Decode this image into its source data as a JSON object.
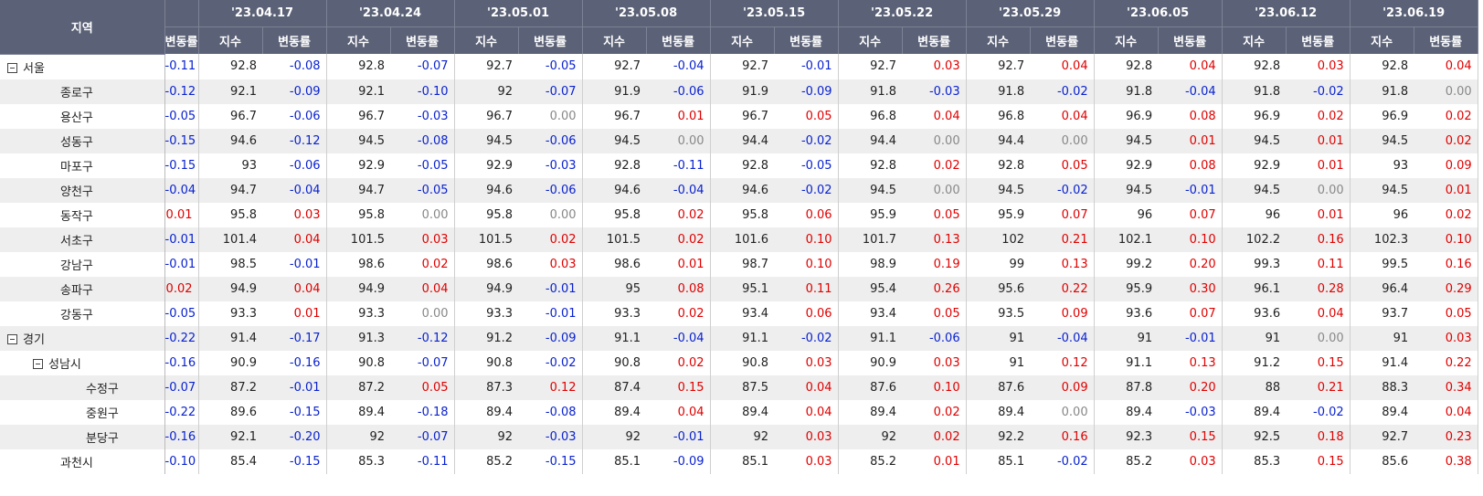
{
  "header": {
    "region_label": "지역",
    "cut_label": "변동률",
    "weeks": [
      "'23.04.17",
      "'23.04.24",
      "'23.05.01",
      "'23.05.08",
      "'23.05.15",
      "'23.05.22",
      "'23.05.29",
      "'23.06.05",
      "'23.06.12",
      "'23.06.19"
    ],
    "sub_labels": [
      "지수",
      "변동률"
    ]
  },
  "rows": [
    {
      "name": "서울",
      "prev_change": "-0.11",
      "weeks": [
        [
          "92.8",
          "-0.08"
        ],
        [
          "92.8",
          "-0.07"
        ],
        [
          "92.7",
          "-0.05"
        ],
        [
          "92.7",
          "-0.04"
        ],
        [
          "92.7",
          "-0.01"
        ],
        [
          "92.7",
          "0.03"
        ],
        [
          "92.7",
          "0.04"
        ],
        [
          "92.8",
          "0.04"
        ],
        [
          "92.8",
          "0.03"
        ],
        [
          "92.8",
          "0.04"
        ]
      ],
      "children": [
        {
          "name": "종로구",
          "prev_change": "-0.12",
          "weeks": [
            [
              "92.1",
              "-0.09"
            ],
            [
              "92.1",
              "-0.10"
            ],
            [
              "92",
              "-0.07"
            ],
            [
              "91.9",
              "-0.06"
            ],
            [
              "91.9",
              "-0.09"
            ],
            [
              "91.8",
              "-0.03"
            ],
            [
              "91.8",
              "-0.02"
            ],
            [
              "91.8",
              "-0.04"
            ],
            [
              "91.8",
              "-0.02"
            ],
            [
              "91.8",
              "0.00"
            ]
          ]
        },
        {
          "name": "용산구",
          "prev_change": "-0.05",
          "weeks": [
            [
              "96.7",
              "-0.06"
            ],
            [
              "96.7",
              "-0.03"
            ],
            [
              "96.7",
              "0.00"
            ],
            [
              "96.7",
              "0.01"
            ],
            [
              "96.7",
              "0.05"
            ],
            [
              "96.8",
              "0.04"
            ],
            [
              "96.8",
              "0.04"
            ],
            [
              "96.9",
              "0.08"
            ],
            [
              "96.9",
              "0.02"
            ],
            [
              "96.9",
              "0.02"
            ]
          ]
        },
        {
          "name": "성동구",
          "prev_change": "-0.15",
          "weeks": [
            [
              "94.6",
              "-0.12"
            ],
            [
              "94.5",
              "-0.08"
            ],
            [
              "94.5",
              "-0.06"
            ],
            [
              "94.5",
              "0.00"
            ],
            [
              "94.4",
              "-0.02"
            ],
            [
              "94.4",
              "0.00"
            ],
            [
              "94.4",
              "0.00"
            ],
            [
              "94.5",
              "0.01"
            ],
            [
              "94.5",
              "0.01"
            ],
            [
              "94.5",
              "0.02"
            ]
          ]
        },
        {
          "name": "마포구",
          "prev_change": "-0.15",
          "weeks": [
            [
              "93",
              "-0.06"
            ],
            [
              "92.9",
              "-0.05"
            ],
            [
              "92.9",
              "-0.03"
            ],
            [
              "92.8",
              "-0.11"
            ],
            [
              "92.8",
              "-0.05"
            ],
            [
              "92.8",
              "0.02"
            ],
            [
              "92.8",
              "0.05"
            ],
            [
              "92.9",
              "0.08"
            ],
            [
              "92.9",
              "0.01"
            ],
            [
              "93",
              "0.09"
            ]
          ]
        },
        {
          "name": "양천구",
          "prev_change": "-0.04",
          "weeks": [
            [
              "94.7",
              "-0.04"
            ],
            [
              "94.7",
              "-0.05"
            ],
            [
              "94.6",
              "-0.06"
            ],
            [
              "94.6",
              "-0.04"
            ],
            [
              "94.6",
              "-0.02"
            ],
            [
              "94.5",
              "0.00"
            ],
            [
              "94.5",
              "-0.02"
            ],
            [
              "94.5",
              "-0.01"
            ],
            [
              "94.5",
              "0.00"
            ],
            [
              "94.5",
              "0.01"
            ]
          ]
        },
        {
          "name": "동작구",
          "prev_change": "0.01",
          "weeks": [
            [
              "95.8",
              "0.03"
            ],
            [
              "95.8",
              "0.00"
            ],
            [
              "95.8",
              "0.00"
            ],
            [
              "95.8",
              "0.02"
            ],
            [
              "95.8",
              "0.06"
            ],
            [
              "95.9",
              "0.05"
            ],
            [
              "95.9",
              "0.07"
            ],
            [
              "96",
              "0.07"
            ],
            [
              "96",
              "0.01"
            ],
            [
              "96",
              "0.02"
            ]
          ]
        },
        {
          "name": "서초구",
          "prev_change": "-0.01",
          "weeks": [
            [
              "101.4",
              "0.04"
            ],
            [
              "101.5",
              "0.03"
            ],
            [
              "101.5",
              "0.02"
            ],
            [
              "101.5",
              "0.02"
            ],
            [
              "101.6",
              "0.10"
            ],
            [
              "101.7",
              "0.13"
            ],
            [
              "102",
              "0.21"
            ],
            [
              "102.1",
              "0.10"
            ],
            [
              "102.2",
              "0.16"
            ],
            [
              "102.3",
              "0.10"
            ]
          ]
        },
        {
          "name": "강남구",
          "prev_change": "-0.01",
          "weeks": [
            [
              "98.5",
              "-0.01"
            ],
            [
              "98.6",
              "0.02"
            ],
            [
              "98.6",
              "0.03"
            ],
            [
              "98.6",
              "0.01"
            ],
            [
              "98.7",
              "0.10"
            ],
            [
              "98.9",
              "0.19"
            ],
            [
              "99",
              "0.13"
            ],
            [
              "99.2",
              "0.20"
            ],
            [
              "99.3",
              "0.11"
            ],
            [
              "99.5",
              "0.16"
            ]
          ]
        },
        {
          "name": "송파구",
          "prev_change": "0.02",
          "weeks": [
            [
              "94.9",
              "0.04"
            ],
            [
              "94.9",
              "0.04"
            ],
            [
              "94.9",
              "-0.01"
            ],
            [
              "95",
              "0.08"
            ],
            [
              "95.1",
              "0.11"
            ],
            [
              "95.4",
              "0.26"
            ],
            [
              "95.6",
              "0.22"
            ],
            [
              "95.9",
              "0.30"
            ],
            [
              "96.1",
              "0.28"
            ],
            [
              "96.4",
              "0.29"
            ]
          ]
        },
        {
          "name": "강동구",
          "prev_change": "-0.05",
          "weeks": [
            [
              "93.3",
              "0.01"
            ],
            [
              "93.3",
              "0.00"
            ],
            [
              "93.3",
              "-0.01"
            ],
            [
              "93.3",
              "0.02"
            ],
            [
              "93.4",
              "0.06"
            ],
            [
              "93.4",
              "0.05"
            ],
            [
              "93.5",
              "0.09"
            ],
            [
              "93.6",
              "0.07"
            ],
            [
              "93.6",
              "0.04"
            ],
            [
              "93.7",
              "0.05"
            ]
          ]
        }
      ]
    },
    {
      "name": "경기",
      "prev_change": "-0.22",
      "weeks": [
        [
          "91.4",
          "-0.17"
        ],
        [
          "91.3",
          "-0.12"
        ],
        [
          "91.2",
          "-0.09"
        ],
        [
          "91.1",
          "-0.04"
        ],
        [
          "91.1",
          "-0.02"
        ],
        [
          "91.1",
          "-0.06"
        ],
        [
          "91",
          "-0.04"
        ],
        [
          "91",
          "-0.01"
        ],
        [
          "91",
          "0.00"
        ],
        [
          "91",
          "0.03"
        ]
      ],
      "children": [
        {
          "name": "성남시",
          "prev_change": "-0.16",
          "weeks": [
            [
              "90.9",
              "-0.16"
            ],
            [
              "90.8",
              "-0.07"
            ],
            [
              "90.8",
              "-0.02"
            ],
            [
              "90.8",
              "0.02"
            ],
            [
              "90.8",
              "0.03"
            ],
            [
              "90.9",
              "0.03"
            ],
            [
              "91",
              "0.12"
            ],
            [
              "91.1",
              "0.13"
            ],
            [
              "91.2",
              "0.15"
            ],
            [
              "91.4",
              "0.22"
            ]
          ],
          "children": [
            {
              "name": "수정구",
              "prev_change": "-0.07",
              "weeks": [
                [
                  "87.2",
                  "-0.01"
                ],
                [
                  "87.2",
                  "0.05"
                ],
                [
                  "87.3",
                  "0.12"
                ],
                [
                  "87.4",
                  "0.15"
                ],
                [
                  "87.5",
                  "0.04"
                ],
                [
                  "87.6",
                  "0.10"
                ],
                [
                  "87.6",
                  "0.09"
                ],
                [
                  "87.8",
                  "0.20"
                ],
                [
                  "88",
                  "0.21"
                ],
                [
                  "88.3",
                  "0.34"
                ]
              ]
            },
            {
              "name": "중원구",
              "prev_change": "-0.22",
              "weeks": [
                [
                  "89.6",
                  "-0.15"
                ],
                [
                  "89.4",
                  "-0.18"
                ],
                [
                  "89.4",
                  "-0.08"
                ],
                [
                  "89.4",
                  "0.04"
                ],
                [
                  "89.4",
                  "0.04"
                ],
                [
                  "89.4",
                  "0.02"
                ],
                [
                  "89.4",
                  "0.00"
                ],
                [
                  "89.4",
                  "-0.03"
                ],
                [
                  "89.4",
                  "-0.02"
                ],
                [
                  "89.4",
                  "0.04"
                ]
              ]
            },
            {
              "name": "분당구",
              "prev_change": "-0.16",
              "weeks": [
                [
                  "92.1",
                  "-0.20"
                ],
                [
                  "92",
                  "-0.07"
                ],
                [
                  "92",
                  "-0.03"
                ],
                [
                  "92",
                  "-0.01"
                ],
                [
                  "92",
                  "0.03"
                ],
                [
                  "92",
                  "0.02"
                ],
                [
                  "92.2",
                  "0.16"
                ],
                [
                  "92.3",
                  "0.15"
                ],
                [
                  "92.5",
                  "0.18"
                ],
                [
                  "92.7",
                  "0.23"
                ]
              ]
            }
          ]
        },
        {
          "name": "과천시",
          "prev_change": "-0.10",
          "weeks": [
            [
              "85.4",
              "-0.15"
            ],
            [
              "85.3",
              "-0.11"
            ],
            [
              "85.2",
              "-0.15"
            ],
            [
              "85.1",
              "-0.09"
            ],
            [
              "85.1",
              "0.03"
            ],
            [
              "85.2",
              "0.01"
            ],
            [
              "85.1",
              "-0.02"
            ],
            [
              "85.2",
              "0.03"
            ],
            [
              "85.3",
              "0.15"
            ],
            [
              "85.6",
              "0.38"
            ]
          ]
        }
      ]
    }
  ]
}
